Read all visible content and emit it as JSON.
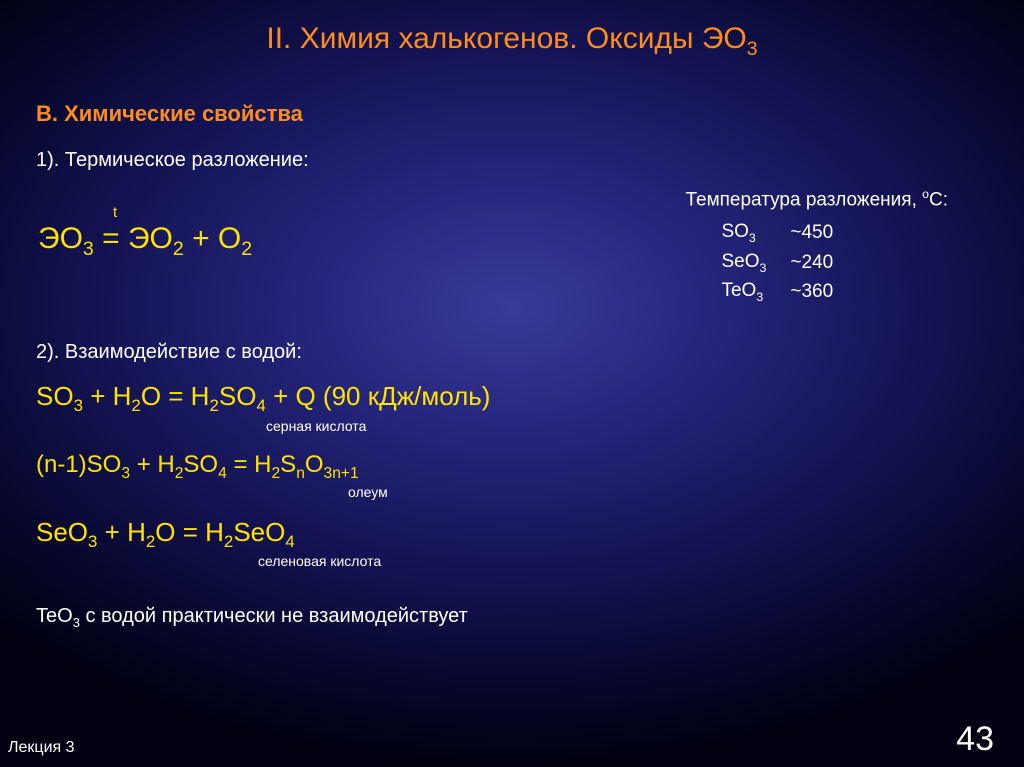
{
  "colors": {
    "orange": "#ff8c1a",
    "yellow": "#ffe300",
    "white": "#ffffff",
    "bg_center": "#3a3a9a",
    "bg_edge": "#000010"
  },
  "title": {
    "prefix": "II. Химия халькогенов. Оксиды ЭО",
    "sub": "3"
  },
  "section_b": "В. Химические свойства",
  "point1_label": "1). Термическое разложение:",
  "eq1": {
    "lhs": "ЭО",
    "lhs_sub": "3",
    "cond": "t",
    "rhs1": "ЭО",
    "rhs1_sub": "2",
    "plus": " + O",
    "rhs2_sub": "2"
  },
  "temp_table": {
    "header_plain": "Температура разложения, ",
    "header_unit_sup": "o",
    "header_unit": "С:",
    "rows": [
      {
        "f": "SO",
        "s": "3",
        "v": "~450"
      },
      {
        "f": "SeO",
        "s": "3",
        "v": "~240"
      },
      {
        "f": "TeO",
        "s": "3",
        "v": "~360"
      }
    ]
  },
  "point2_label": "2). Взаимодействие с водой:",
  "eq2": {
    "text_html": "SO<sub>3</sub> + H<sub>2</sub>O = H<sub>2</sub>SO<sub>4</sub> + Q (90 кДж/моль)",
    "note": "серная кислота"
  },
  "eq3": {
    "text_html": "(n-1)SO<sub>3</sub> + H<sub>2</sub>SO<sub>4</sub> = H<sub>2</sub>S<sub>n</sub>O<sub>3n+1</sub>",
    "note": "олеум"
  },
  "eq4": {
    "text_html": "SeO<sub>3</sub> + H<sub>2</sub>O = H<sub>2</sub>SeO<sub>4</sub>",
    "note": "селеновая кислота"
  },
  "bottom_note": {
    "prefix": "TeO",
    "sub": "3",
    "rest": " с водой практически не взаимодействует"
  },
  "footer": {
    "lecture": "Лекция 3",
    "page": "43"
  }
}
